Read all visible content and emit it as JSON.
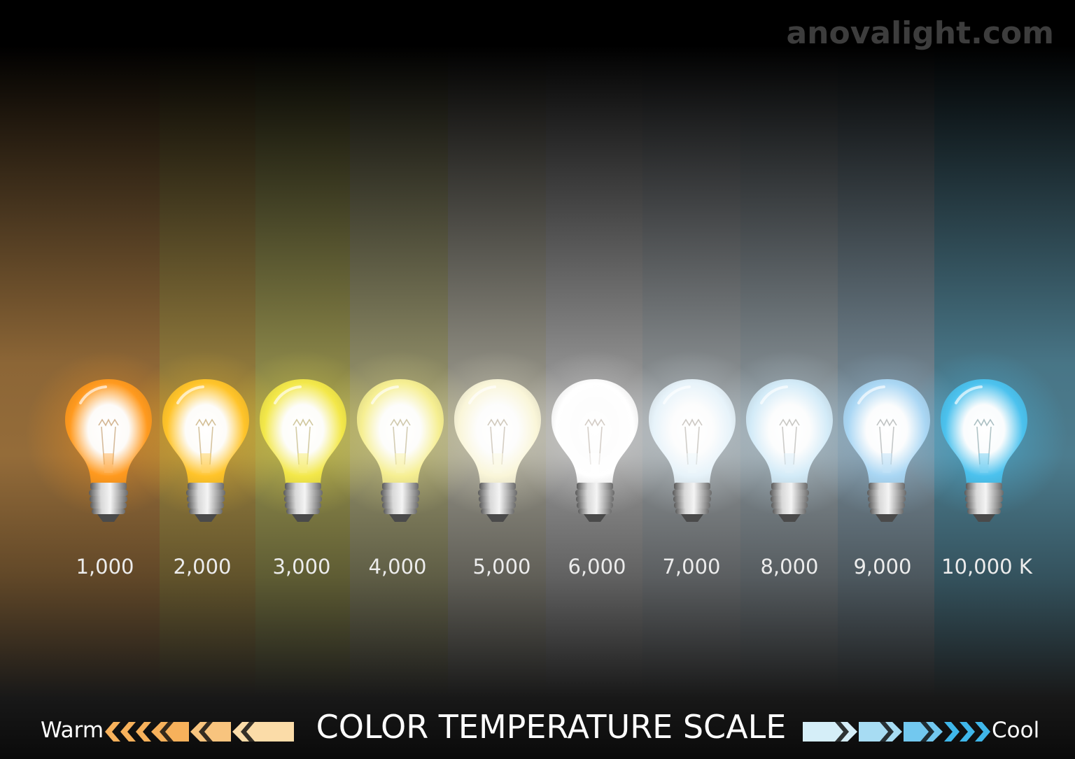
{
  "watermark": "anovalight.com",
  "title": "COLOR TEMPERATURE SCALE",
  "warm_label": "Warm",
  "cool_label": "Cool",
  "bulbs": [
    {
      "label": "1,000",
      "color": "#ff9a1f"
    },
    {
      "label": "2,000",
      "color": "#ffc42a"
    },
    {
      "label": "3,000",
      "color": "#f3e84a"
    },
    {
      "label": "4,000",
      "color": "#f6ef92"
    },
    {
      "label": "5,000",
      "color": "#faf6d9"
    },
    {
      "label": "6,000",
      "color": "#ffffff"
    },
    {
      "label": "7,000",
      "color": "#e7f3fa"
    },
    {
      "label": "8,000",
      "color": "#d3ebf8"
    },
    {
      "label": "9,000",
      "color": "#aad7f4"
    },
    {
      "label": "10,000 K",
      "color": "#4cc2ee"
    }
  ],
  "colors": {
    "warm_arrow": "#f7b15b",
    "warm_arrow_light": "#fbdca8",
    "cool_arrow": "#a7dcf3",
    "cool_arrow_dark": "#3fb7ea"
  }
}
